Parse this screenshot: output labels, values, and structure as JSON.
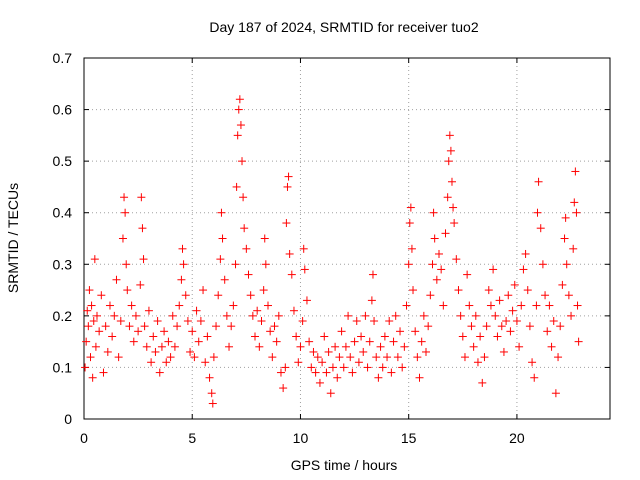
{
  "chart_data": {
    "type": "scatter",
    "title": "Day 187 of 2024, SRMTID for receiver tuo2",
    "xlabel": "GPS time / hours",
    "ylabel": "SRMTID / TECUs",
    "xlim": [
      0,
      24.3
    ],
    "ylim": [
      0,
      0.7
    ],
    "xticks": [
      0,
      5,
      10,
      15,
      20
    ],
    "xtick_labels": [
      "0",
      "5",
      "10",
      "15",
      "20"
    ],
    "yticks": [
      0,
      0.1,
      0.2,
      0.3,
      0.4,
      0.5,
      0.6,
      0.7
    ],
    "ytick_labels": [
      "0",
      "0.1",
      "0.2",
      "0.3",
      "0.4",
      "0.5",
      "0.6",
      "0.7"
    ],
    "grid": true,
    "marker": "plus",
    "color": "#ff0000",
    "series": [
      {
        "name": "SRMTID",
        "points": [
          [
            0.05,
            0.1
          ],
          [
            0.1,
            0.15
          ],
          [
            0.15,
            0.21
          ],
          [
            0.2,
            0.18
          ],
          [
            0.25,
            0.25
          ],
          [
            0.3,
            0.12
          ],
          [
            0.35,
            0.22
          ],
          [
            0.4,
            0.08
          ],
          [
            0.45,
            0.19
          ],
          [
            0.5,
            0.31
          ],
          [
            0.55,
            0.14
          ],
          [
            0.6,
            0.2
          ],
          [
            0.7,
            0.17
          ],
          [
            0.8,
            0.24
          ],
          [
            0.9,
            0.09
          ],
          [
            1.0,
            0.18
          ],
          [
            1.1,
            0.13
          ],
          [
            1.2,
            0.22
          ],
          [
            1.3,
            0.16
          ],
          [
            1.4,
            0.2
          ],
          [
            1.5,
            0.27
          ],
          [
            1.6,
            0.12
          ],
          [
            1.7,
            0.19
          ],
          [
            1.8,
            0.35
          ],
          [
            1.85,
            0.43
          ],
          [
            1.9,
            0.4
          ],
          [
            1.95,
            0.3
          ],
          [
            2.0,
            0.25
          ],
          [
            2.1,
            0.18
          ],
          [
            2.2,
            0.22
          ],
          [
            2.3,
            0.15
          ],
          [
            2.4,
            0.2
          ],
          [
            2.5,
            0.17
          ],
          [
            2.6,
            0.26
          ],
          [
            2.65,
            0.43
          ],
          [
            2.7,
            0.37
          ],
          [
            2.75,
            0.31
          ],
          [
            2.8,
            0.18
          ],
          [
            2.9,
            0.14
          ],
          [
            3.0,
            0.21
          ],
          [
            3.1,
            0.11
          ],
          [
            3.2,
            0.16
          ],
          [
            3.3,
            0.13
          ],
          [
            3.4,
            0.19
          ],
          [
            3.5,
            0.09
          ],
          [
            3.6,
            0.14
          ],
          [
            3.7,
            0.17
          ],
          [
            3.8,
            0.11
          ],
          [
            3.9,
            0.15
          ],
          [
            4.0,
            0.12
          ],
          [
            4.1,
            0.2
          ],
          [
            4.2,
            0.14
          ],
          [
            4.3,
            0.18
          ],
          [
            4.4,
            0.22
          ],
          [
            4.5,
            0.27
          ],
          [
            4.55,
            0.33
          ],
          [
            4.6,
            0.3
          ],
          [
            4.7,
            0.24
          ],
          [
            4.8,
            0.19
          ],
          [
            4.9,
            0.13
          ],
          [
            5.0,
            0.17
          ],
          [
            5.1,
            0.12
          ],
          [
            5.2,
            0.21
          ],
          [
            5.3,
            0.15
          ],
          [
            5.4,
            0.19
          ],
          [
            5.5,
            0.25
          ],
          [
            5.6,
            0.11
          ],
          [
            5.7,
            0.16
          ],
          [
            5.8,
            0.08
          ],
          [
            5.9,
            0.05
          ],
          [
            5.95,
            0.03
          ],
          [
            6.0,
            0.12
          ],
          [
            6.1,
            0.18
          ],
          [
            6.2,
            0.24
          ],
          [
            6.3,
            0.31
          ],
          [
            6.35,
            0.4
          ],
          [
            6.4,
            0.35
          ],
          [
            6.5,
            0.27
          ],
          [
            6.6,
            0.2
          ],
          [
            6.7,
            0.14
          ],
          [
            6.8,
            0.18
          ],
          [
            6.9,
            0.22
          ],
          [
            7.0,
            0.3
          ],
          [
            7.05,
            0.45
          ],
          [
            7.1,
            0.55
          ],
          [
            7.15,
            0.6
          ],
          [
            7.2,
            0.62
          ],
          [
            7.25,
            0.57
          ],
          [
            7.3,
            0.5
          ],
          [
            7.35,
            0.43
          ],
          [
            7.4,
            0.37
          ],
          [
            7.5,
            0.33
          ],
          [
            7.6,
            0.28
          ],
          [
            7.7,
            0.24
          ],
          [
            7.8,
            0.2
          ],
          [
            7.9,
            0.16
          ],
          [
            8.0,
            0.21
          ],
          [
            8.1,
            0.14
          ],
          [
            8.2,
            0.19
          ],
          [
            8.3,
            0.25
          ],
          [
            8.35,
            0.35
          ],
          [
            8.4,
            0.3
          ],
          [
            8.5,
            0.22
          ],
          [
            8.6,
            0.17
          ],
          [
            8.7,
            0.12
          ],
          [
            8.8,
            0.18
          ],
          [
            8.9,
            0.15
          ],
          [
            9.0,
            0.2
          ],
          [
            9.1,
            0.09
          ],
          [
            9.2,
            0.06
          ],
          [
            9.3,
            0.1
          ],
          [
            9.35,
            0.38
          ],
          [
            9.4,
            0.45
          ],
          [
            9.45,
            0.47
          ],
          [
            9.5,
            0.32
          ],
          [
            9.6,
            0.28
          ],
          [
            9.7,
            0.21
          ],
          [
            9.8,
            0.16
          ],
          [
            9.9,
            0.11
          ],
          [
            10.0,
            0.14
          ],
          [
            10.1,
            0.19
          ],
          [
            10.15,
            0.33
          ],
          [
            10.2,
            0.29
          ],
          [
            10.3,
            0.23
          ],
          [
            10.4,
            0.15
          ],
          [
            10.5,
            0.1
          ],
          [
            10.6,
            0.13
          ],
          [
            10.7,
            0.09
          ],
          [
            10.8,
            0.12
          ],
          [
            10.9,
            0.07
          ],
          [
            11.0,
            0.11
          ],
          [
            11.1,
            0.16
          ],
          [
            11.2,
            0.09
          ],
          [
            11.3,
            0.13
          ],
          [
            11.4,
            0.05
          ],
          [
            11.5,
            0.1
          ],
          [
            11.6,
            0.14
          ],
          [
            11.7,
            0.08
          ],
          [
            11.8,
            0.12
          ],
          [
            11.9,
            0.17
          ],
          [
            12.0,
            0.1
          ],
          [
            12.1,
            0.14
          ],
          [
            12.2,
            0.2
          ],
          [
            12.3,
            0.12
          ],
          [
            12.4,
            0.09
          ],
          [
            12.5,
            0.15
          ],
          [
            12.6,
            0.19
          ],
          [
            12.7,
            0.11
          ],
          [
            12.8,
            0.16
          ],
          [
            12.9,
            0.13
          ],
          [
            13.0,
            0.2
          ],
          [
            13.1,
            0.1
          ],
          [
            13.2,
            0.15
          ],
          [
            13.3,
            0.23
          ],
          [
            13.35,
            0.28
          ],
          [
            13.4,
            0.19
          ],
          [
            13.5,
            0.12
          ],
          [
            13.6,
            0.08
          ],
          [
            13.7,
            0.14
          ],
          [
            13.8,
            0.1
          ],
          [
            13.9,
            0.16
          ],
          [
            14.0,
            0.12
          ],
          [
            14.1,
            0.19
          ],
          [
            14.2,
            0.09
          ],
          [
            14.3,
            0.15
          ],
          [
            14.4,
            0.2
          ],
          [
            14.5,
            0.12
          ],
          [
            14.6,
            0.17
          ],
          [
            14.7,
            0.1
          ],
          [
            14.8,
            0.14
          ],
          [
            14.9,
            0.22
          ],
          [
            15.0,
            0.3
          ],
          [
            15.05,
            0.38
          ],
          [
            15.1,
            0.41
          ],
          [
            15.15,
            0.33
          ],
          [
            15.2,
            0.25
          ],
          [
            15.3,
            0.17
          ],
          [
            15.4,
            0.12
          ],
          [
            15.5,
            0.08
          ],
          [
            15.6,
            0.15
          ],
          [
            15.7,
            0.2
          ],
          [
            15.8,
            0.13
          ],
          [
            15.9,
            0.18
          ],
          [
            16.0,
            0.24
          ],
          [
            16.1,
            0.3
          ],
          [
            16.15,
            0.4
          ],
          [
            16.2,
            0.35
          ],
          [
            16.3,
            0.27
          ],
          [
            16.4,
            0.32
          ],
          [
            16.5,
            0.29
          ],
          [
            16.6,
            0.22
          ],
          [
            16.7,
            0.36
          ],
          [
            16.8,
            0.43
          ],
          [
            16.85,
            0.5
          ],
          [
            16.9,
            0.55
          ],
          [
            16.95,
            0.52
          ],
          [
            17.0,
            0.46
          ],
          [
            17.05,
            0.41
          ],
          [
            17.1,
            0.38
          ],
          [
            17.2,
            0.31
          ],
          [
            17.3,
            0.25
          ],
          [
            17.4,
            0.2
          ],
          [
            17.5,
            0.16
          ],
          [
            17.6,
            0.12
          ],
          [
            17.7,
            0.28
          ],
          [
            17.8,
            0.22
          ],
          [
            17.9,
            0.18
          ],
          [
            18.0,
            0.14
          ],
          [
            18.1,
            0.2
          ],
          [
            18.2,
            0.11
          ],
          [
            18.3,
            0.16
          ],
          [
            18.4,
            0.07
          ],
          [
            18.5,
            0.12
          ],
          [
            18.6,
            0.18
          ],
          [
            18.7,
            0.25
          ],
          [
            18.8,
            0.22
          ],
          [
            18.9,
            0.29
          ],
          [
            19.0,
            0.2
          ],
          [
            19.1,
            0.16
          ],
          [
            19.2,
            0.23
          ],
          [
            19.3,
            0.18
          ],
          [
            19.4,
            0.13
          ],
          [
            19.5,
            0.19
          ],
          [
            19.6,
            0.24
          ],
          [
            19.7,
            0.17
          ],
          [
            19.8,
            0.21
          ],
          [
            19.9,
            0.26
          ],
          [
            20.0,
            0.19
          ],
          [
            20.1,
            0.14
          ],
          [
            20.2,
            0.22
          ],
          [
            20.3,
            0.29
          ],
          [
            20.4,
            0.32
          ],
          [
            20.5,
            0.25
          ],
          [
            20.6,
            0.18
          ],
          [
            20.7,
            0.11
          ],
          [
            20.8,
            0.08
          ],
          [
            20.9,
            0.22
          ],
          [
            20.95,
            0.4
          ],
          [
            21.0,
            0.46
          ],
          [
            21.1,
            0.37
          ],
          [
            21.2,
            0.3
          ],
          [
            21.3,
            0.24
          ],
          [
            21.4,
            0.17
          ],
          [
            21.5,
            0.22
          ],
          [
            21.6,
            0.14
          ],
          [
            21.7,
            0.19
          ],
          [
            21.8,
            0.05
          ],
          [
            21.9,
            0.12
          ],
          [
            22.0,
            0.18
          ],
          [
            22.1,
            0.26
          ],
          [
            22.2,
            0.35
          ],
          [
            22.25,
            0.39
          ],
          [
            22.3,
            0.3
          ],
          [
            22.4,
            0.24
          ],
          [
            22.5,
            0.2
          ],
          [
            22.6,
            0.33
          ],
          [
            22.65,
            0.42
          ],
          [
            22.7,
            0.48
          ],
          [
            22.75,
            0.4
          ],
          [
            22.8,
            0.22
          ],
          [
            22.85,
            0.15
          ]
        ]
      }
    ]
  }
}
